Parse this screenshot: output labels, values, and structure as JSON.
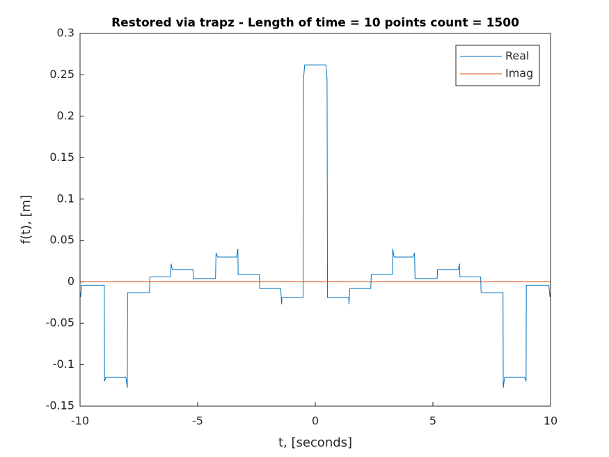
{
  "chart_data": {
    "type": "line",
    "title": "Restored via trapz - Length of time = 10 points count = 1500",
    "xlabel": "t, [seconds]",
    "ylabel": "f(t), [m]",
    "x": [
      -10,
      -9.97,
      -9.93,
      -8.97,
      -8.96,
      -8.9,
      -8.05,
      -7.99,
      -7.98,
      -7.05,
      -7.03,
      -6.15,
      -6.13,
      -6.08,
      -5.2,
      -5.18,
      -4.24,
      -4.22,
      -4.15,
      -3.35,
      -3.29,
      -3.28,
      -2.38,
      -2.36,
      -1.47,
      -1.43,
      -1.42,
      -0.52,
      -0.5,
      -0.45,
      0.45,
      0.5,
      0.52,
      1.42,
      1.43,
      1.47,
      2.36,
      2.38,
      3.28,
      3.29,
      3.35,
      4.15,
      4.22,
      4.24,
      5.18,
      5.2,
      6.08,
      6.13,
      6.15,
      7.03,
      7.05,
      7.98,
      7.99,
      8.05,
      8.9,
      8.96,
      8.97,
      9.93,
      9.97,
      10
    ],
    "series": [
      {
        "name": "Real",
        "color": "#0072bd",
        "values": [
          -0.012,
          -0.018,
          -0.004,
          -0.004,
          -0.12,
          -0.115,
          -0.115,
          -0.128,
          -0.013,
          -0.013,
          0.006,
          0.006,
          0.022,
          0.015,
          0.015,
          0.004,
          0.004,
          0.035,
          0.03,
          0.03,
          0.04,
          0.009,
          0.009,
          -0.008,
          -0.008,
          -0.027,
          -0.019,
          -0.019,
          0.245,
          0.262,
          0.262,
          0.245,
          -0.019,
          -0.019,
          -0.027,
          -0.008,
          -0.008,
          0.009,
          0.009,
          0.04,
          0.03,
          0.03,
          0.035,
          0.004,
          0.004,
          0.015,
          0.015,
          0.022,
          0.006,
          0.006,
          -0.013,
          -0.013,
          -0.128,
          -0.115,
          -0.115,
          -0.12,
          -0.004,
          -0.004,
          -0.018,
          -0.012
        ]
      },
      {
        "name": "Imag",
        "color": "#d95319",
        "values": [
          0,
          0,
          0,
          0,
          0,
          0,
          0,
          0,
          0,
          0,
          0,
          0,
          0,
          0,
          0,
          0,
          0,
          0,
          0,
          0,
          0,
          0,
          0,
          0,
          0,
          0,
          0,
          0,
          0,
          0,
          0,
          0,
          0,
          0,
          0,
          0,
          0,
          0,
          0,
          0,
          0,
          0,
          0,
          0,
          0,
          0,
          0,
          0,
          0,
          0,
          0,
          0,
          0,
          0,
          0,
          0,
          0,
          0,
          0,
          0
        ]
      }
    ],
    "xlim": [
      -10,
      10
    ],
    "xticks": [
      -10,
      -5,
      0,
      5,
      10
    ],
    "ylim": [
      -0.15,
      0.3
    ],
    "yticks": [
      -0.15,
      -0.1,
      -0.05,
      0,
      0.05,
      0.1,
      0.15,
      0.2,
      0.25,
      0.3
    ],
    "grid": false,
    "legend": "top-right"
  }
}
